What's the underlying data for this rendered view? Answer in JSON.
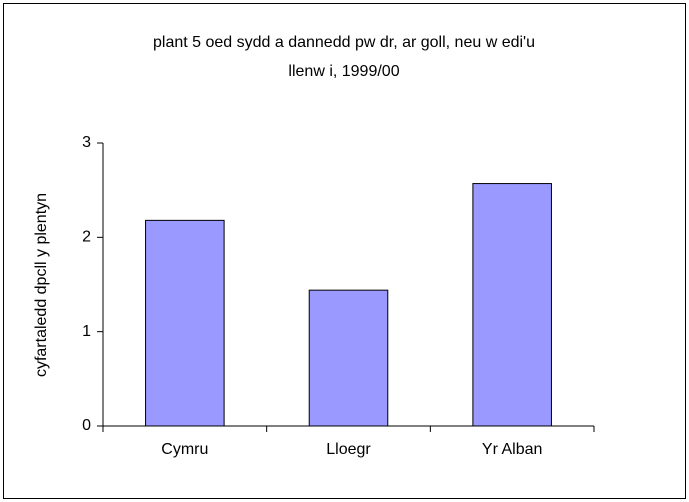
{
  "chart_data": {
    "type": "bar",
    "title": [
      "plant 5 oed sydd a dannedd pw dr, ar goll, neu w edi'u",
      "llenw i, 1999/00"
    ],
    "y_label": "cyfartaledd dpcll y plentyn",
    "categories": [
      "Cymru",
      "Lloegr",
      "Yr Alban"
    ],
    "values": [
      2.18,
      1.44,
      2.57
    ],
    "color": "#9999ff",
    "ylim": [
      0,
      3
    ],
    "yticks": [
      0,
      1,
      2,
      3
    ],
    "grid": false
  }
}
